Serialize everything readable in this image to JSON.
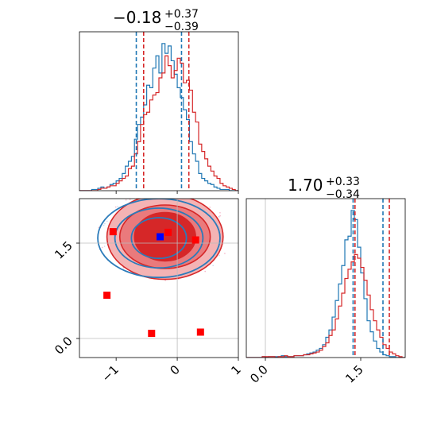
{
  "chart_data": [
    {
      "type": "histogram",
      "panel": "top-left",
      "title_value": "−0.18",
      "title_plus": "+0.37",
      "title_minus": "−0.39",
      "xlim": [
        -1.6,
        1.0
      ],
      "bins_x": [
        -1.6,
        -1.55,
        -1.5,
        -1.45,
        -1.4,
        -1.35,
        -1.3,
        -1.25,
        -1.2,
        -1.15,
        -1.1,
        -1.05,
        -1.0,
        -0.95,
        -0.9,
        -0.85,
        -0.8,
        -0.75,
        -0.7,
        -0.65,
        -0.6,
        -0.55,
        -0.5,
        -0.45,
        -0.4,
        -0.35,
        -0.3,
        -0.25,
        -0.2,
        -0.15,
        -0.1,
        -0.05,
        0.0,
        0.05,
        0.1,
        0.15,
        0.2,
        0.25,
        0.3,
        0.35,
        0.4,
        0.45,
        0.5,
        0.55,
        0.6,
        0.65,
        0.7,
        0.75,
        0.8,
        0.85,
        0.9,
        0.95
      ],
      "series": [
        {
          "color": "#1f77b4",
          "counts": [
            0,
            0,
            0,
            0,
            1,
            1,
            2,
            3,
            2,
            3,
            5,
            6,
            8,
            10,
            14,
            20,
            24,
            28,
            42,
            54,
            60,
            70,
            86,
            84,
            100,
            110,
            96,
            120,
            112,
            118,
            106,
            95,
            84,
            76,
            66,
            58,
            40,
            30,
            24,
            14,
            10,
            8,
            6,
            5,
            3,
            2,
            1,
            1,
            1,
            0,
            0,
            0
          ]
        },
        {
          "color": "#d62728",
          "counts": [
            0,
            0,
            0,
            0,
            0,
            0,
            1,
            2,
            2,
            3,
            4,
            4,
            6,
            8,
            10,
            12,
            18,
            20,
            30,
            40,
            54,
            62,
            64,
            74,
            78,
            80,
            92,
            96,
            110,
            102,
            92,
            98,
            108,
            104,
            88,
            90,
            82,
            64,
            56,
            38,
            32,
            26,
            20,
            16,
            12,
            10,
            6,
            4,
            3,
            2,
            1,
            0
          ]
        }
      ],
      "quantile_lines": [
        {
          "color": "#1f77b4",
          "values": [
            -0.67,
            0.07
          ]
        },
        {
          "color": "#d62728",
          "values": [
            -0.55,
            0.19
          ]
        }
      ]
    },
    {
      "type": "contour-scatter",
      "panel": "bottom-left",
      "xlim": [
        -1.6,
        1.0
      ],
      "ylim": [
        -0.3,
        2.2
      ],
      "x_ticks": [
        {
          "value": -1,
          "label": "−1"
        },
        {
          "value": 0,
          "label": "0"
        },
        {
          "value": 1,
          "label": "1"
        }
      ],
      "y_ticks": [
        {
          "value": 0.0,
          "label": "0.0"
        },
        {
          "value": 1.5,
          "label": "1.5"
        }
      ],
      "ref_lines": {
        "x": 0.0,
        "y": [
          1.5,
          0.0
        ]
      },
      "points_red": [
        [
          -1.05,
          1.68
        ],
        [
          -1.15,
          0.68
        ],
        [
          -0.42,
          0.08
        ],
        [
          0.38,
          0.1
        ],
        [
          -0.15,
          1.67
        ],
        [
          0.3,
          1.55
        ]
      ],
      "point_blue": [
        -0.28,
        1.6
      ],
      "contours_red": [
        {
          "cx": -0.2,
          "cy": 1.6,
          "rx": 0.95,
          "ry": 0.67,
          "fill": "#f4b3b4"
        },
        {
          "cx": -0.2,
          "cy": 1.6,
          "rx": 0.74,
          "ry": 0.5,
          "fill": "#ea7a7c"
        },
        {
          "cx": -0.2,
          "cy": 1.6,
          "rx": 0.5,
          "ry": 0.38,
          "fill": "#d62728"
        }
      ],
      "contours_blue": [
        {
          "cx": -0.3,
          "cy": 1.58,
          "rx": 1.0,
          "ry": 0.62
        },
        {
          "cx": -0.3,
          "cy": 1.58,
          "rx": 0.72,
          "ry": 0.47
        },
        {
          "cx": -0.3,
          "cy": 1.58,
          "rx": 0.45,
          "ry": 0.32
        }
      ]
    },
    {
      "type": "histogram",
      "panel": "bottom-right",
      "title_value": "1.70",
      "title_plus": "+0.33",
      "title_minus": "−0.34",
      "xlim": [
        -0.3,
        2.2
      ],
      "x_ticks": [
        {
          "value": 0.0,
          "label": "0.0"
        },
        {
          "value": 1.5,
          "label": "1.5"
        }
      ],
      "bins_x": [
        -0.3,
        -0.25,
        -0.2,
        -0.15,
        -0.1,
        -0.05,
        0.0,
        0.05,
        0.1,
        0.15,
        0.2,
        0.25,
        0.3,
        0.35,
        0.4,
        0.45,
        0.5,
        0.55,
        0.6,
        0.65,
        0.7,
        0.75,
        0.8,
        0.85,
        0.9,
        0.95,
        1.0,
        1.05,
        1.1,
        1.15,
        1.2,
        1.25,
        1.3,
        1.35,
        1.4,
        1.45,
        1.5,
        1.55,
        1.6,
        1.65,
        1.7,
        1.75,
        1.8,
        1.85,
        1.9,
        1.95,
        2.0,
        2.05,
        2.1,
        2.15
      ],
      "series": [
        {
          "color": "#1f77b4",
          "counts": [
            0,
            0,
            0,
            0,
            0,
            1,
            0,
            1,
            1,
            1,
            1,
            2,
            1,
            1,
            1,
            2,
            2,
            2,
            3,
            4,
            5,
            6,
            8,
            10,
            14,
            22,
            30,
            44,
            62,
            80,
            100,
            128,
            132,
            160,
            150,
            120,
            92,
            64,
            40,
            28,
            18,
            10,
            6,
            3,
            2,
            1,
            1,
            0,
            0,
            0
          ]
        },
        {
          "color": "#d62728",
          "counts": [
            0,
            0,
            0,
            0,
            0,
            1,
            1,
            1,
            1,
            0,
            1,
            1,
            2,
            1,
            1,
            2,
            2,
            2,
            3,
            3,
            4,
            5,
            6,
            8,
            12,
            16,
            24,
            30,
            42,
            56,
            70,
            86,
            96,
            104,
            112,
            108,
            98,
            84,
            68,
            52,
            40,
            30,
            22,
            14,
            10,
            6,
            4,
            2,
            1,
            0
          ]
        }
      ],
      "quantile_lines": [
        {
          "color": "#1f77b4",
          "values": [
            1.38,
            1.85
          ]
        },
        {
          "color": "#d62728",
          "values": [
            1.41,
            1.95
          ]
        }
      ],
      "ref_line_x": 0.0
    }
  ]
}
